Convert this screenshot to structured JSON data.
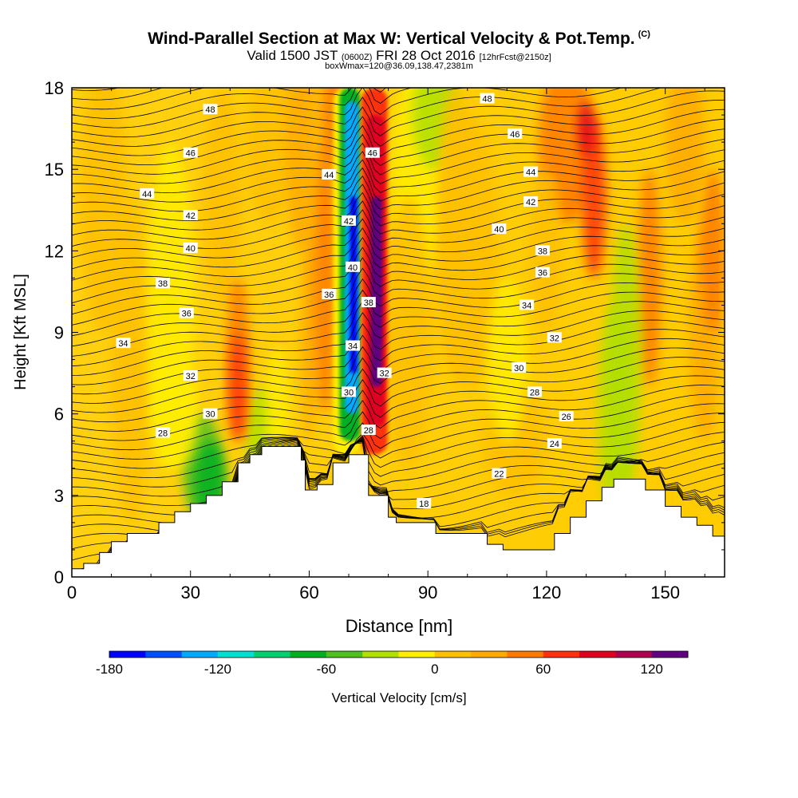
{
  "title": {
    "main": "Wind-Parallel Section at Max W: Vertical Velocity & Pot.Temp.",
    "copyright": "(C)",
    "valid_prefix": "Valid 1500 JST",
    "valid_utc": "(0600Z)",
    "valid_date": "FRI 28 Oct 2016",
    "forecast": "[12hrFcst@2150z]",
    "box": "boxWmax=120@36.09,138.47,2381m"
  },
  "chart_data": {
    "type": "heatmap",
    "xlabel": "Distance [nm]",
    "ylabel": "Height [Kft MSL]",
    "xlim": [
      0,
      165
    ],
    "ylim": [
      0,
      18
    ],
    "xticks": [
      0,
      30,
      60,
      90,
      120,
      150
    ],
    "yticks": [
      0,
      3,
      6,
      9,
      12,
      15,
      18
    ],
    "colorbar": {
      "label": "Vertical Velocity [cm/s]",
      "tick_values": [
        -180,
        -120,
        -60,
        0,
        60,
        120
      ],
      "tick_labels": [
        "-180",
        "-120",
        "-60",
        "0",
        "60",
        "120"
      ],
      "range": [
        -180,
        140
      ],
      "colors": [
        "#0000ff",
        "#0050ff",
        "#00aaff",
        "#00e0d0",
        "#00d070",
        "#00b020",
        "#50c020",
        "#b0e000",
        "#ffee00",
        "#ffc000",
        "#ffaa00",
        "#ff7a00",
        "#ff3010",
        "#e00020",
        "#b00050",
        "#600080"
      ]
    },
    "terrain_kft": [
      [
        0,
        0.3
      ],
      [
        3,
        0.5
      ],
      [
        7,
        0.9
      ],
      [
        10,
        1.3
      ],
      [
        14,
        1.6
      ],
      [
        18,
        1.6
      ],
      [
        22,
        2.0
      ],
      [
        26,
        2.4
      ],
      [
        30,
        2.7
      ],
      [
        34,
        3.0
      ],
      [
        38,
        3.5
      ],
      [
        42,
        4.2
      ],
      [
        45,
        4.5
      ],
      [
        48,
        4.8
      ],
      [
        55,
        4.8
      ],
      [
        58,
        4.3
      ],
      [
        59,
        3.2
      ],
      [
        62,
        3.4
      ],
      [
        66,
        4.2
      ],
      [
        70,
        4.5
      ],
      [
        73,
        4.5
      ],
      [
        75,
        3.0
      ],
      [
        80,
        2.2
      ],
      [
        82,
        2.0
      ],
      [
        88,
        2.0
      ],
      [
        92,
        1.6
      ],
      [
        100,
        1.6
      ],
      [
        105,
        1.2
      ],
      [
        109,
        1.0
      ],
      [
        118,
        1.0
      ],
      [
        122,
        1.6
      ],
      [
        126,
        2.2
      ],
      [
        130,
        2.8
      ],
      [
        134,
        3.3
      ],
      [
        137,
        3.6
      ],
      [
        142,
        3.6
      ],
      [
        145,
        3.2
      ],
      [
        150,
        2.6
      ],
      [
        154,
        2.2
      ],
      [
        158,
        1.9
      ],
      [
        162,
        1.5
      ],
      [
        165,
        1.3
      ]
    ],
    "isentrope_labels": [
      {
        "value": "48",
        "x": 35,
        "y": 17.2
      },
      {
        "value": "46",
        "x": 30,
        "y": 15.6
      },
      {
        "value": "44",
        "x": 19,
        "y": 14.1
      },
      {
        "value": "42",
        "x": 30,
        "y": 13.3
      },
      {
        "value": "40",
        "x": 30,
        "y": 12.1
      },
      {
        "value": "38",
        "x": 23,
        "y": 10.8
      },
      {
        "value": "36",
        "x": 29,
        "y": 9.7
      },
      {
        "value": "34",
        "x": 13,
        "y": 8.6
      },
      {
        "value": "32",
        "x": 30,
        "y": 7.4
      },
      {
        "value": "30",
        "x": 35,
        "y": 6.0
      },
      {
        "value": "28",
        "x": 23,
        "y": 5.3
      },
      {
        "value": "44",
        "x": 65,
        "y": 14.8
      },
      {
        "value": "46",
        "x": 76,
        "y": 15.6
      },
      {
        "value": "42",
        "x": 70,
        "y": 13.1
      },
      {
        "value": "40",
        "x": 71,
        "y": 11.4
      },
      {
        "value": "38",
        "x": 75,
        "y": 10.1
      },
      {
        "value": "36",
        "x": 65,
        "y": 10.4
      },
      {
        "value": "34",
        "x": 71,
        "y": 8.5
      },
      {
        "value": "32",
        "x": 79,
        "y": 7.5
      },
      {
        "value": "30",
        "x": 70,
        "y": 6.8
      },
      {
        "value": "28",
        "x": 75,
        "y": 5.4
      },
      {
        "value": "48",
        "x": 105,
        "y": 17.6
      },
      {
        "value": "46",
        "x": 112,
        "y": 16.3
      },
      {
        "value": "44",
        "x": 116,
        "y": 14.9
      },
      {
        "value": "42",
        "x": 116,
        "y": 13.8
      },
      {
        "value": "40",
        "x": 108,
        "y": 12.8
      },
      {
        "value": "38",
        "x": 119,
        "y": 12.0
      },
      {
        "value": "36",
        "x": 119,
        "y": 11.2
      },
      {
        "value": "34",
        "x": 115,
        "y": 10.0
      },
      {
        "value": "32",
        "x": 122,
        "y": 8.8
      },
      {
        "value": "30",
        "x": 113,
        "y": 7.7
      },
      {
        "value": "28",
        "x": 117,
        "y": 6.8
      },
      {
        "value": "26",
        "x": 125,
        "y": 5.9
      },
      {
        "value": "24",
        "x": 122,
        "y": 4.9
      },
      {
        "value": "22",
        "x": 108,
        "y": 3.8
      },
      {
        "value": "18",
        "x": 89,
        "y": 2.7
      }
    ]
  }
}
